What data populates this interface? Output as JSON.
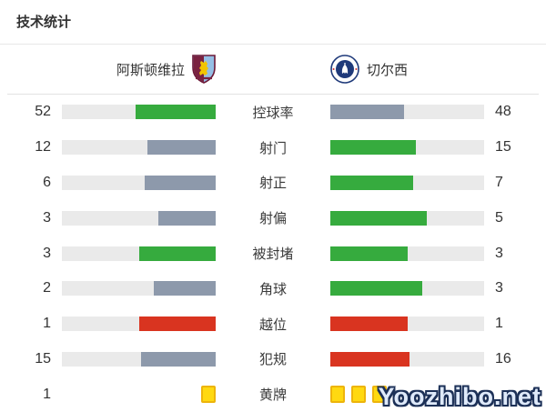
{
  "title": "技术统计",
  "header": {
    "home_team": {
      "name": "阿斯顿维拉",
      "badge": "aston-villa-crest"
    },
    "away_team": {
      "name": "切尔西",
      "badge": "chelsea-crest"
    }
  },
  "colors": {
    "green": "#36ab3e",
    "gray_blue": "#8d99ab",
    "red": "#d93420",
    "yellow": "#ffd911",
    "yellow_border": "#edb40b",
    "track": "#eaeaea"
  },
  "rows": [
    {
      "label": "控球率",
      "kind": "bar",
      "home": {
        "value": "52",
        "pct": 52,
        "color": "green"
      },
      "away": {
        "value": "48",
        "pct": 48,
        "color": "gray_blue"
      }
    },
    {
      "label": "射门",
      "kind": "bar",
      "home": {
        "value": "12",
        "pct": 44.4,
        "color": "gray_blue"
      },
      "away": {
        "value": "15",
        "pct": 55.6,
        "color": "green"
      }
    },
    {
      "label": "射正",
      "kind": "bar",
      "home": {
        "value": "6",
        "pct": 46.2,
        "color": "gray_blue"
      },
      "away": {
        "value": "7",
        "pct": 53.8,
        "color": "green"
      }
    },
    {
      "label": "射偏",
      "kind": "bar",
      "home": {
        "value": "3",
        "pct": 37.5,
        "color": "gray_blue"
      },
      "away": {
        "value": "5",
        "pct": 62.5,
        "color": "green"
      }
    },
    {
      "label": "被封堵",
      "kind": "bar",
      "home": {
        "value": "3",
        "pct": 50,
        "color": "green"
      },
      "away": {
        "value": "3",
        "pct": 50,
        "color": "green"
      }
    },
    {
      "label": "角球",
      "kind": "bar",
      "home": {
        "value": "2",
        "pct": 40,
        "color": "gray_blue"
      },
      "away": {
        "value": "3",
        "pct": 60,
        "color": "green"
      }
    },
    {
      "label": "越位",
      "kind": "bar",
      "home": {
        "value": "1",
        "pct": 50,
        "color": "red"
      },
      "away": {
        "value": "1",
        "pct": 50,
        "color": "red"
      }
    },
    {
      "label": "犯规",
      "kind": "bar",
      "home": {
        "value": "15",
        "pct": 48.4,
        "color": "gray_blue"
      },
      "away": {
        "value": "16",
        "pct": 51.6,
        "color": "red"
      }
    },
    {
      "label": "黄牌",
      "kind": "cards",
      "home": {
        "value": "1",
        "cards": 1
      },
      "away": {
        "value": "",
        "cards": 3
      }
    }
  ],
  "watermark": "Yoozhibo.net",
  "chart_data": {
    "type": "bar",
    "title": "技术统计",
    "categories": [
      "控球率",
      "射门",
      "射正",
      "射偏",
      "被封堵",
      "角球",
      "越位",
      "犯规",
      "黄牌"
    ],
    "series": [
      {
        "name": "阿斯顿维拉",
        "values": [
          52,
          12,
          6,
          3,
          3,
          2,
          1,
          15,
          1
        ]
      },
      {
        "name": "切尔西",
        "values": [
          48,
          15,
          7,
          5,
          3,
          3,
          1,
          16,
          3
        ]
      }
    ],
    "layout": "horizontal paired bars; stat labels centered between sides; home bars anchored right, away bars anchored left; fill ratio = value/(home+away); yellow cards drawn as yellow squares",
    "bar_colors_by_row": [
      [
        "green",
        "gray"
      ],
      [
        "gray",
        "green"
      ],
      [
        "gray",
        "green"
      ],
      [
        "gray",
        "green"
      ],
      [
        "green",
        "green"
      ],
      [
        "gray",
        "green"
      ],
      [
        "red",
        "red"
      ],
      [
        "gray",
        "red"
      ],
      [
        "yellow-cards",
        "yellow-cards"
      ]
    ]
  }
}
